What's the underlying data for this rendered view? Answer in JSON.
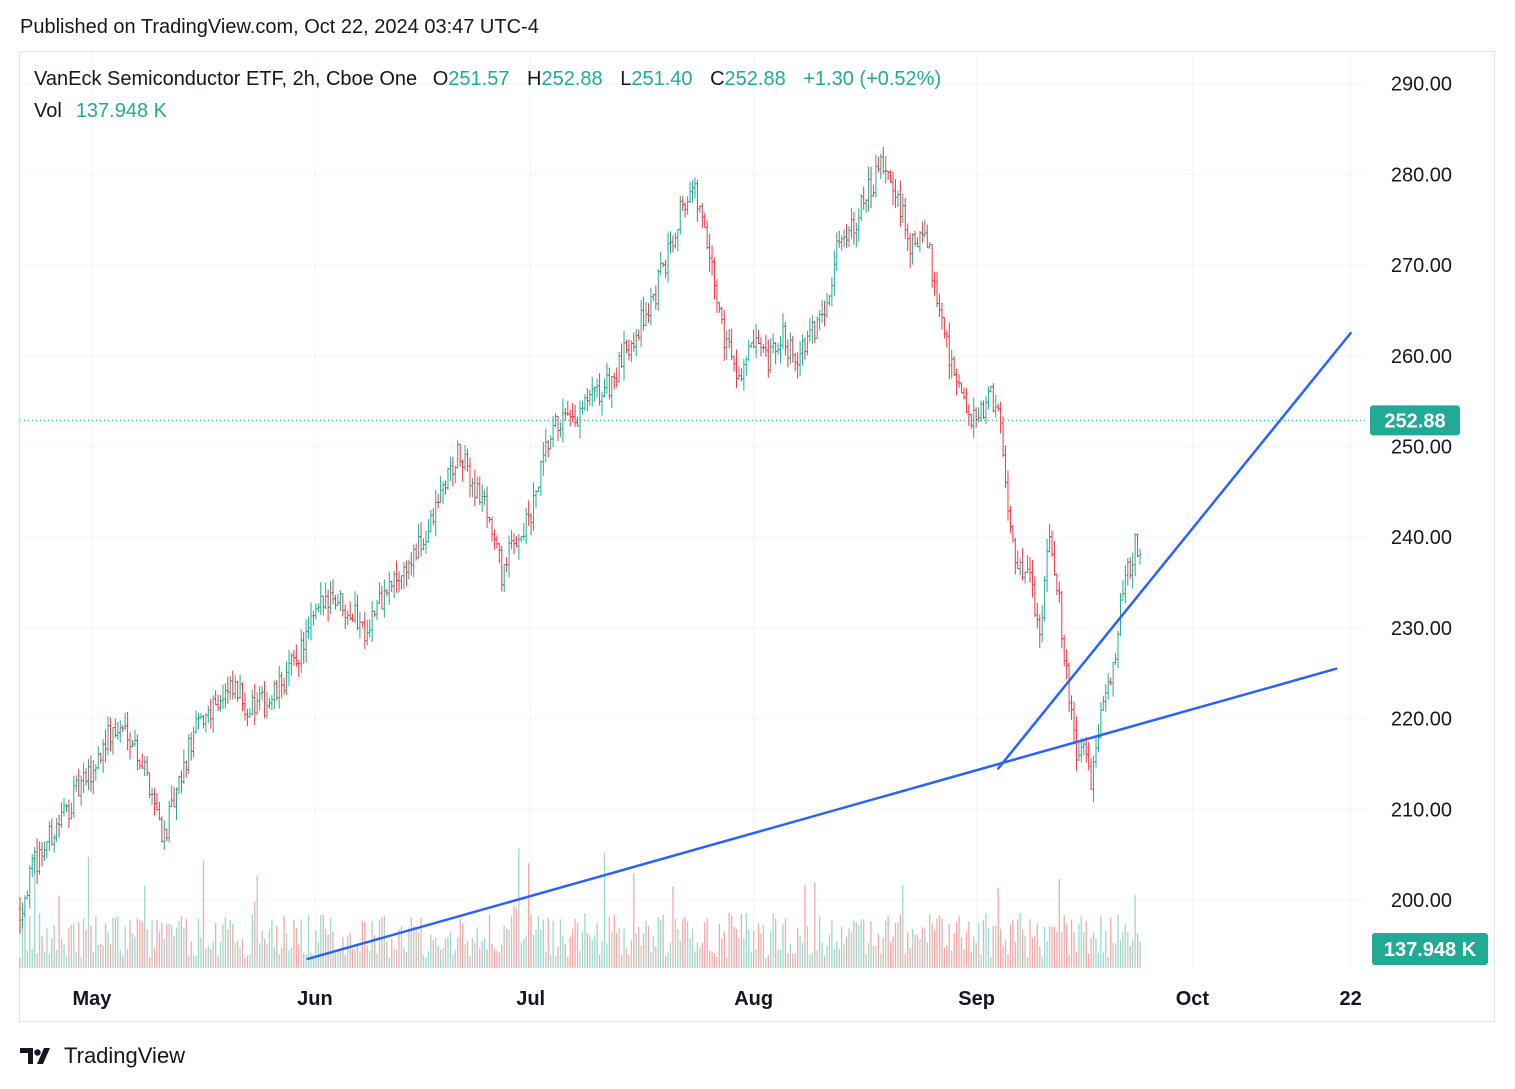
{
  "header": {
    "published": "Published on TradingView.com, Oct 22, 2024 03:47 UTC-4"
  },
  "legend": {
    "title": "VanEck Semiconductor ETF, 2h, Cboe One",
    "o_label": "O",
    "o_value": "251.57",
    "h_label": "H",
    "h_value": "252.88",
    "l_label": "L",
    "l_value": "251.40",
    "c_label": "C",
    "c_value": "252.88",
    "change": "+1.30 (+0.52%)",
    "vol_label": "Vol",
    "vol_value": "137.948 K"
  },
  "footer": {
    "brand": "TradingView"
  },
  "colors": {
    "up": "#22ab94",
    "down": "#f23645",
    "trendline": "#2962ff",
    "grid": "#f0f3fa",
    "text": "#131722"
  },
  "chart_data": {
    "type": "candlestick",
    "y_ticks": [
      "290.00",
      "280.00",
      "270.00",
      "260.00",
      "250.00",
      "240.00",
      "230.00",
      "220.00",
      "210.00",
      "200.00"
    ],
    "ylim": [
      192.5,
      293.5
    ],
    "x_labels": [
      "May",
      "Jun",
      "Jul",
      "Aug",
      "Sep",
      "Oct",
      "22"
    ],
    "x_label_positions_days": [
      0,
      31,
      61,
      92,
      123,
      153,
      175
    ],
    "x_range_days": [
      -10,
      177
    ],
    "x_origin_date": "2024-05-01",
    "last_price": "252.88",
    "last_volume": "137.948 K",
    "price_path": [
      [
        -10,
        199
      ],
      [
        -8,
        204
      ],
      [
        -5,
        208
      ],
      [
        -2,
        212
      ],
      [
        0,
        214
      ],
      [
        2,
        218
      ],
      [
        5,
        219
      ],
      [
        8,
        213
      ],
      [
        10,
        207
      ],
      [
        12,
        212
      ],
      [
        14,
        218
      ],
      [
        17,
        222
      ],
      [
        20,
        223
      ],
      [
        22,
        221
      ],
      [
        25,
        222
      ],
      [
        28,
        226
      ],
      [
        31,
        231
      ],
      [
        33,
        234
      ],
      [
        36,
        232
      ],
      [
        38,
        230
      ],
      [
        41,
        234
      ],
      [
        43,
        236
      ],
      [
        45,
        238
      ],
      [
        47,
        241
      ],
      [
        49,
        246
      ],
      [
        51,
        249
      ],
      [
        53,
        246
      ],
      [
        55,
        243
      ],
      [
        57,
        236
      ],
      [
        59,
        240
      ],
      [
        61,
        242
      ],
      [
        63,
        249
      ],
      [
        65,
        253
      ],
      [
        67,
        252
      ],
      [
        69,
        255
      ],
      [
        71,
        256
      ],
      [
        73,
        258
      ],
      [
        75,
        262
      ],
      [
        78,
        266
      ],
      [
        80,
        271
      ],
      [
        82,
        277
      ],
      [
        84,
        278
      ],
      [
        86,
        270
      ],
      [
        88,
        262
      ],
      [
        90,
        258
      ],
      [
        92,
        261
      ],
      [
        94,
        259
      ],
      [
        96,
        262
      ],
      [
        98,
        260
      ],
      [
        100,
        262
      ],
      [
        102,
        266
      ],
      [
        104,
        273
      ],
      [
        106,
        275
      ],
      [
        108,
        278
      ],
      [
        110,
        281
      ],
      [
        112,
        277
      ],
      [
        114,
        272
      ],
      [
        116,
        273
      ],
      [
        119,
        261
      ],
      [
        121,
        255
      ],
      [
        123,
        252
      ],
      [
        125,
        256
      ],
      [
        126,
        254
      ],
      [
        127,
        246
      ],
      [
        128,
        240
      ],
      [
        129,
        236
      ],
      [
        130,
        238
      ],
      [
        131,
        232
      ],
      [
        132,
        230
      ],
      [
        133,
        242
      ],
      [
        134,
        236
      ],
      [
        135,
        229
      ],
      [
        136,
        222
      ],
      [
        137,
        214
      ],
      [
        138,
        218
      ],
      [
        139,
        212
      ],
      [
        140,
        219
      ],
      [
        141,
        222
      ],
      [
        142,
        226
      ],
      [
        143,
        232
      ],
      [
        144,
        236
      ],
      [
        145,
        239
      ],
      [
        146,
        236
      ]
    ],
    "candles_note": "candles are generated from price_path by the drawing script",
    "trendlines": [
      {
        "from": [
          "2024-05-31",
          193.5
        ],
        "to": [
          "2024-09-04",
          214.5
        ],
        "extend_to": [
          "2024-10-21",
          225.5
        ]
      },
      {
        "from": [
          "2024-09-04",
          214.5
        ],
        "to": [
          "2024-10-23",
          262.5
        ]
      }
    ]
  }
}
